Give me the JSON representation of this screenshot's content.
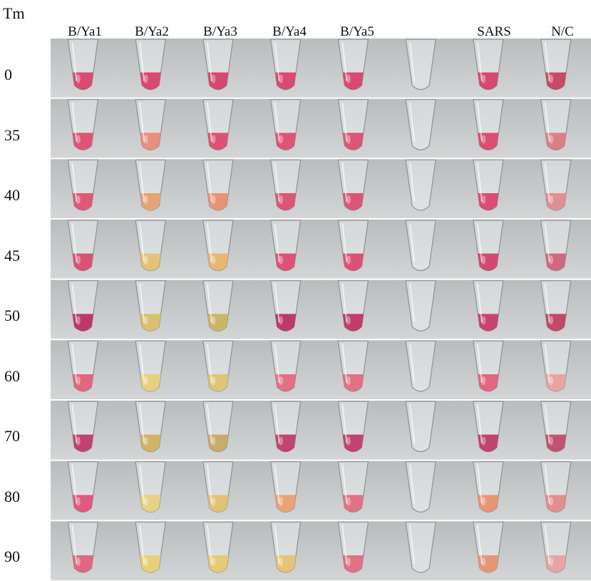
{
  "corner_label": "Tm",
  "columns": [
    {
      "label": "B/Ya1"
    },
    {
      "label": "B/Ya2"
    },
    {
      "label": "B/Ya3"
    },
    {
      "label": "B/Ya4"
    },
    {
      "label": "B/Ya5"
    },
    {
      "label": ""
    },
    {
      "label": "SARS"
    },
    {
      "label": "N/C"
    }
  ],
  "rows": [
    {
      "label": "0",
      "colors": [
        "#d8406a",
        "#d8406a",
        "#d53f68",
        "#d8406a",
        "#d8406a",
        "empty",
        "#d53f68",
        "#c8405f"
      ]
    },
    {
      "label": "35",
      "colors": [
        "#dc4d70",
        "#e88a78",
        "#dc4a6c",
        "#dc4d70",
        "#dc4d70",
        "empty",
        "#d8466a",
        "#d97a80"
      ]
    },
    {
      "label": "40",
      "colors": [
        "#de5070",
        "#e6a070",
        "#e59070",
        "#dc4d70",
        "#dc4d70",
        "empty",
        "#d8466a",
        "#e08a8c"
      ]
    },
    {
      "label": "45",
      "colors": [
        "#d84a70",
        "#e5c070",
        "#e5b56a",
        "#db4a70",
        "#db4a70",
        "empty",
        "#d0406a",
        "#d2607a"
      ]
    },
    {
      "label": "50",
      "colors": [
        "#b83060",
        "#d7c068",
        "#cab260",
        "#b83060",
        "#c03463",
        "empty",
        "#c63a68",
        "#c04060"
      ]
    },
    {
      "label": "60",
      "colors": [
        "#e0607a",
        "#e6d07a",
        "#dcc470",
        "#e06a80",
        "#e06a80",
        "empty",
        "#e0607a",
        "#e8a0a0"
      ]
    },
    {
      "label": "70",
      "colors": [
        "#c03a68",
        "#d0b060",
        "#c8a860",
        "#c03a68",
        "#c03a68",
        "empty",
        "#c03a68",
        "#c04a68"
      ]
    },
    {
      "label": "80",
      "colors": [
        "#e0507a",
        "#e6d080",
        "#e0c070",
        "#e8a070",
        "#e06a80",
        "empty",
        "#e89070",
        "#e08a8a"
      ]
    },
    {
      "label": "90",
      "colors": [
        "#e0607a",
        "#e6d070",
        "#e6c870",
        "#e8c070",
        "#e06a80",
        "empty",
        "#e89070",
        "#e8a0a0"
      ]
    }
  ]
}
